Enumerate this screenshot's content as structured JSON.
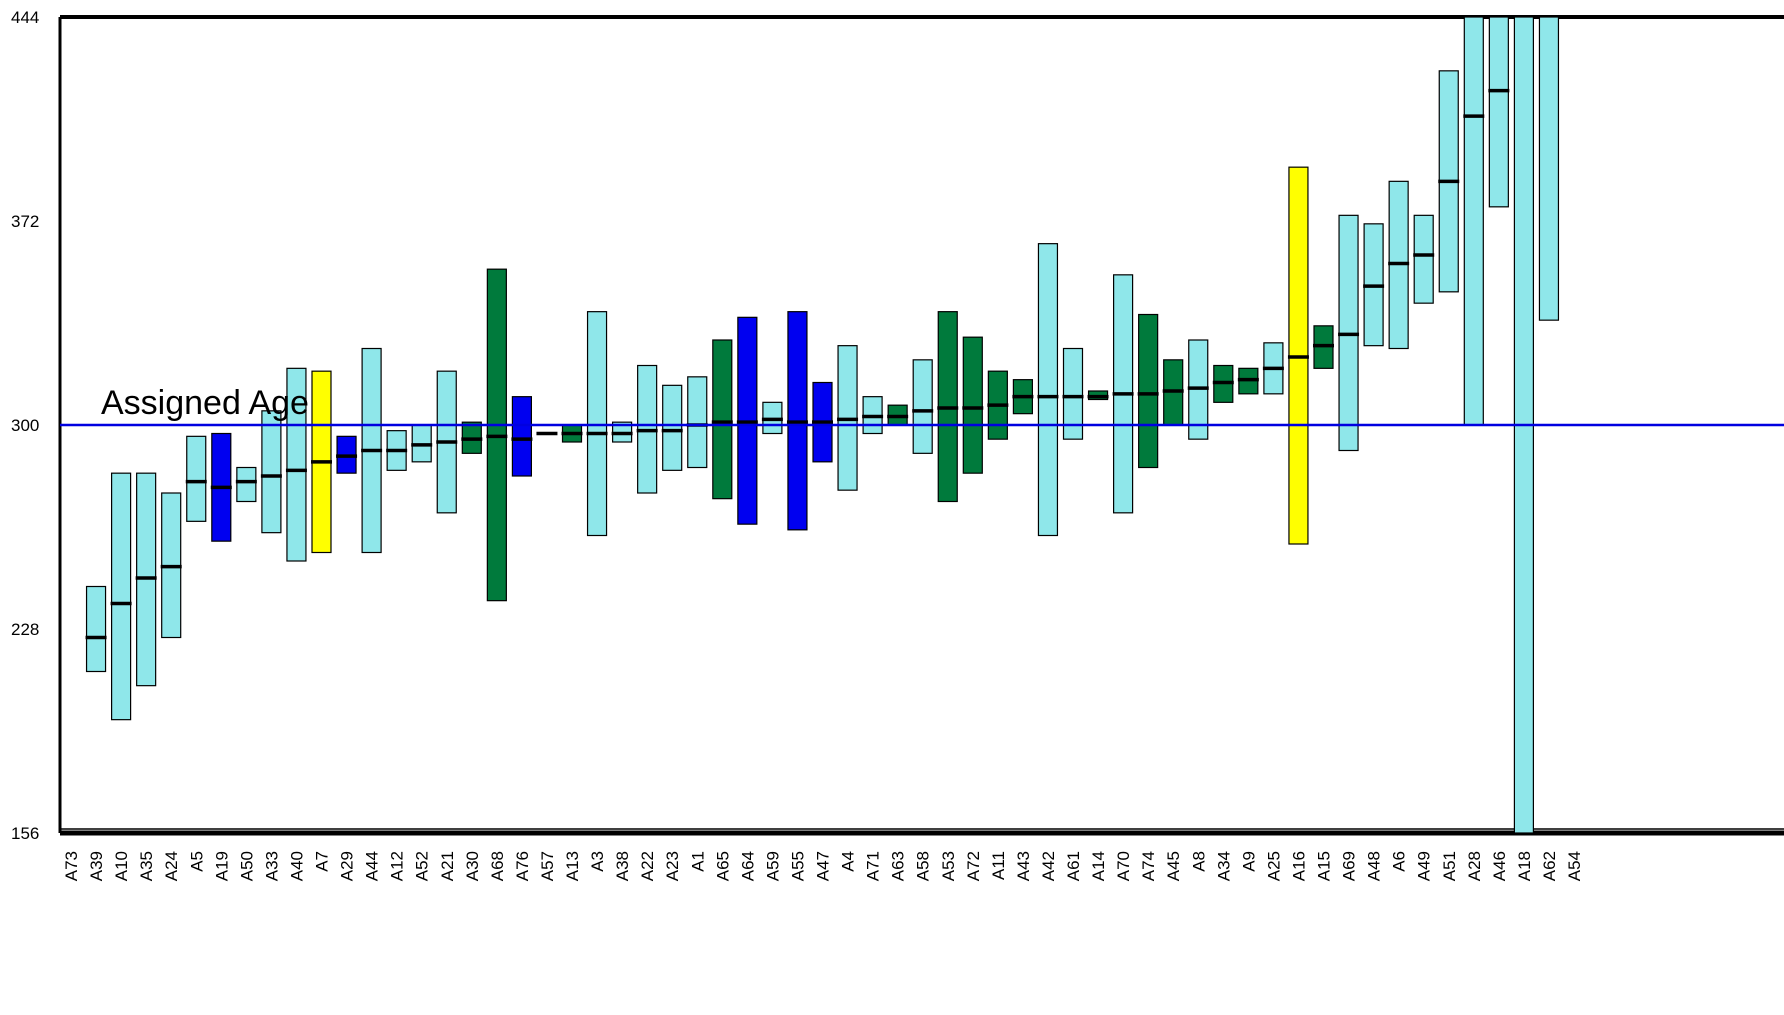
{
  "chart_data": {
    "type": "bar",
    "title": "",
    "xlabel": "",
    "ylabel": "",
    "ylim": [
      156,
      444
    ],
    "yticks": [
      "444",
      "372",
      "300",
      "228",
      "156"
    ],
    "reference_line": {
      "value": 300,
      "label": "Assigned Age",
      "color": "#0000e0"
    },
    "colors": {
      "cyan": "#8fe7ea",
      "blue": "#0000f0",
      "green": "#007a3c",
      "yellow": "#ffff00",
      "outline": "#000000"
    },
    "samples": [
      {
        "label": "A73",
        "low": 156,
        "mean": 156,
        "high": 156,
        "color": "cyan"
      },
      {
        "label": "A39",
        "low": 213,
        "mean": 225,
        "high": 243,
        "color": "cyan"
      },
      {
        "label": "A10",
        "low": 196,
        "mean": 237,
        "high": 283,
        "color": "cyan"
      },
      {
        "label": "A35",
        "low": 208,
        "mean": 246,
        "high": 283,
        "color": "cyan"
      },
      {
        "label": "A24",
        "low": 225,
        "mean": 250,
        "high": 276,
        "color": "cyan"
      },
      {
        "label": "A5",
        "low": 266,
        "mean": 280,
        "high": 296,
        "color": "cyan"
      },
      {
        "label": "A19",
        "low": 259,
        "mean": 278,
        "high": 297,
        "color": "blue"
      },
      {
        "label": "A50",
        "low": 273,
        "mean": 280,
        "high": 285,
        "color": "cyan"
      },
      {
        "label": "A33",
        "low": 262,
        "mean": 282,
        "high": 305,
        "color": "cyan"
      },
      {
        "label": "A40",
        "low": 252,
        "mean": 284,
        "high": 320,
        "color": "cyan"
      },
      {
        "label": "A7",
        "low": 255,
        "mean": 287,
        "high": 319,
        "color": "yellow"
      },
      {
        "label": "A29",
        "low": 283,
        "mean": 289,
        "high": 296,
        "color": "blue"
      },
      {
        "label": "A44",
        "low": 255,
        "mean": 291,
        "high": 327,
        "color": "cyan"
      },
      {
        "label": "A12",
        "low": 284,
        "mean": 291,
        "high": 298,
        "color": "cyan"
      },
      {
        "label": "A52",
        "low": 287,
        "mean": 293,
        "high": 300,
        "color": "cyan"
      },
      {
        "label": "A21",
        "low": 269,
        "mean": 294,
        "high": 319,
        "color": "cyan"
      },
      {
        "label": "A30",
        "low": 290,
        "mean": 295,
        "high": 301,
        "color": "green"
      },
      {
        "label": "A68",
        "low": 238,
        "mean": 296,
        "high": 355,
        "color": "green"
      },
      {
        "label": "A76",
        "low": 282,
        "mean": 295,
        "high": 310,
        "color": "blue"
      },
      {
        "label": "A57",
        "low": 297,
        "mean": 297,
        "high": 297,
        "color": "cyan"
      },
      {
        "label": "A13",
        "low": 294,
        "mean": 297,
        "high": 300,
        "color": "green"
      },
      {
        "label": "A3",
        "low": 261,
        "mean": 297,
        "high": 340,
        "color": "cyan"
      },
      {
        "label": "A38",
        "low": 294,
        "mean": 297,
        "high": 301,
        "color": "cyan"
      },
      {
        "label": "A22",
        "low": 276,
        "mean": 298,
        "high": 321,
        "color": "cyan"
      },
      {
        "label": "A23",
        "low": 284,
        "mean": 298,
        "high": 314,
        "color": "cyan"
      },
      {
        "label": "A1",
        "low": 285,
        "mean": 300,
        "high": 317,
        "color": "cyan"
      },
      {
        "label": "A65",
        "low": 274,
        "mean": 301,
        "high": 330,
        "color": "green"
      },
      {
        "label": "A64",
        "low": 265,
        "mean": 301,
        "high": 338,
        "color": "blue"
      },
      {
        "label": "A59",
        "low": 297,
        "mean": 302,
        "high": 308,
        "color": "cyan"
      },
      {
        "label": "A55",
        "low": 263,
        "mean": 301,
        "high": 340,
        "color": "blue"
      },
      {
        "label": "A47",
        "low": 287,
        "mean": 301,
        "high": 315,
        "color": "blue"
      },
      {
        "label": "A4",
        "low": 277,
        "mean": 302,
        "high": 328,
        "color": "cyan"
      },
      {
        "label": "A71",
        "low": 297,
        "mean": 303,
        "high": 310,
        "color": "cyan"
      },
      {
        "label": "A63",
        "low": 300,
        "mean": 303,
        "high": 307,
        "color": "green"
      },
      {
        "label": "A58",
        "low": 290,
        "mean": 305,
        "high": 323,
        "color": "cyan"
      },
      {
        "label": "A53",
        "low": 273,
        "mean": 306,
        "high": 340,
        "color": "green"
      },
      {
        "label": "A72",
        "low": 283,
        "mean": 306,
        "high": 331,
        "color": "green"
      },
      {
        "label": "A11",
        "low": 295,
        "mean": 307,
        "high": 319,
        "color": "green"
      },
      {
        "label": "A43",
        "low": 304,
        "mean": 310,
        "high": 316,
        "color": "green"
      },
      {
        "label": "A42",
        "low": 261,
        "mean": 310,
        "high": 364,
        "color": "cyan"
      },
      {
        "label": "A61",
        "low": 295,
        "mean": 310,
        "high": 327,
        "color": "cyan"
      },
      {
        "label": "A14",
        "low": 309,
        "mean": 310,
        "high": 312,
        "color": "green"
      },
      {
        "label": "A70",
        "low": 269,
        "mean": 311,
        "high": 353,
        "color": "cyan"
      },
      {
        "label": "A74",
        "low": 285,
        "mean": 311,
        "high": 339,
        "color": "green"
      },
      {
        "label": "A45",
        "low": 300,
        "mean": 312,
        "high": 323,
        "color": "green"
      },
      {
        "label": "A8",
        "low": 295,
        "mean": 313,
        "high": 330,
        "color": "cyan"
      },
      {
        "label": "A34",
        "low": 308,
        "mean": 315,
        "high": 321,
        "color": "green"
      },
      {
        "label": "A9",
        "low": 311,
        "mean": 316,
        "high": 320,
        "color": "green"
      },
      {
        "label": "A25",
        "low": 311,
        "mean": 320,
        "high": 329,
        "color": "cyan"
      },
      {
        "label": "A16",
        "low": 258,
        "mean": 324,
        "high": 391,
        "color": "yellow"
      },
      {
        "label": "A15",
        "low": 320,
        "mean": 328,
        "high": 335,
        "color": "green"
      },
      {
        "label": "A69",
        "low": 291,
        "mean": 332,
        "high": 374,
        "color": "cyan"
      },
      {
        "label": "A48",
        "low": 328,
        "mean": 349,
        "high": 371,
        "color": "cyan"
      },
      {
        "label": "A6",
        "low": 327,
        "mean": 357,
        "high": 386,
        "color": "cyan"
      },
      {
        "label": "A49",
        "low": 343,
        "mean": 360,
        "high": 374,
        "color": "cyan"
      },
      {
        "label": "A51",
        "low": 347,
        "mean": 386,
        "high": 425,
        "color": "cyan"
      },
      {
        "label": "A28",
        "low": 300,
        "mean": 409,
        "high": 444,
        "color": "cyan"
      },
      {
        "label": "A46",
        "low": 377,
        "mean": 418,
        "high": 444,
        "color": "cyan"
      },
      {
        "label": "A18",
        "low": 156,
        "mean": 444,
        "high": 444,
        "color": "cyan"
      },
      {
        "label": "A62",
        "low": 337,
        "mean": 444,
        "high": 444,
        "color": "cyan"
      },
      {
        "label": "A54",
        "low": 444,
        "mean": 444,
        "high": 444,
        "color": "cyan"
      }
    ]
  }
}
